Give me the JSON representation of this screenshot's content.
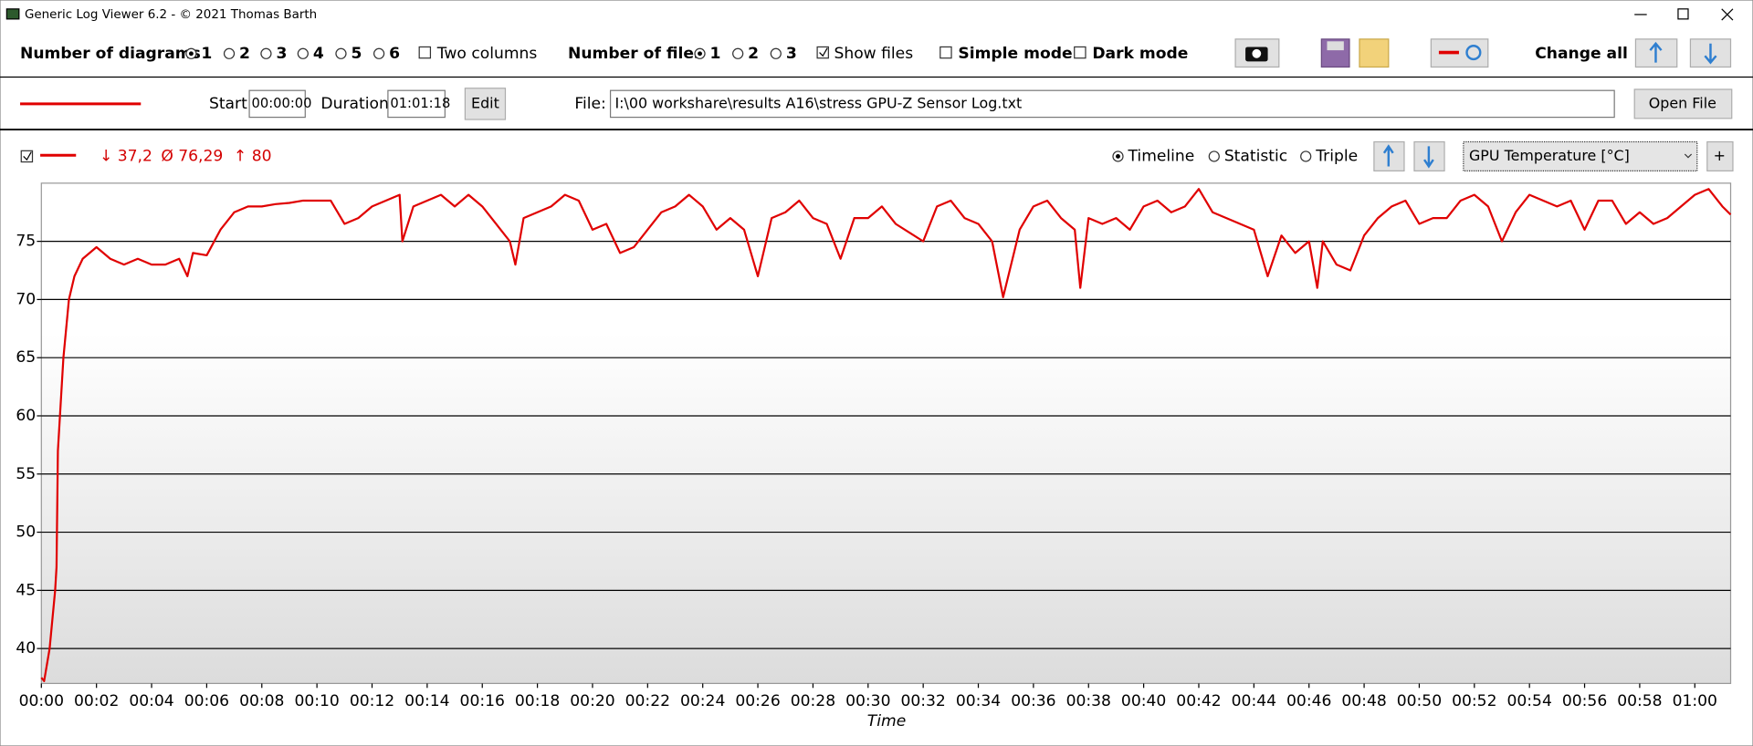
{
  "window_title": "Generic Log Viewer 6.2 - © 2021 Thomas Barth",
  "toolbar": {
    "diagrams_label": "Number of diagrams",
    "diagram_options": [
      "1",
      "2",
      "3",
      "4",
      "5",
      "6"
    ],
    "two_columns": "Two columns",
    "files_label": "Number of files",
    "file_options": [
      "1",
      "2",
      "3"
    ],
    "show_files": "Show files",
    "simple_mode": "Simple mode",
    "dark_mode": "Dark mode",
    "change_all": "Change all"
  },
  "file_bar": {
    "start_label": "Start:",
    "start": "00:00:00",
    "duration_label": "Duration:",
    "duration": "01:01:18",
    "edit": "Edit",
    "file_label": "File:",
    "file_path": "I:\\00 workshare\\results A16\\stress GPU-Z Sensor Log.txt",
    "open_file": "Open File"
  },
  "diagram_bar": {
    "min": "↓ 37,2",
    "avg": "Ø 76,29",
    "max": "↑ 80",
    "modes": [
      "Timeline",
      "Statistic",
      "Triple"
    ],
    "sensor": "GPU Temperature [°C]",
    "add": "+"
  },
  "chart_data": {
    "type": "line",
    "x_label": "Time",
    "color": "#e00000",
    "xlim": [
      0,
      61.3
    ],
    "ylim": [
      37,
      80
    ],
    "grid": true,
    "yticks": [
      40,
      45,
      50,
      55,
      60,
      65,
      70,
      75
    ],
    "xticks": [
      {
        "value": 0,
        "label": "00:00"
      },
      {
        "value": 2,
        "label": "00:02"
      },
      {
        "value": 4,
        "label": "00:04"
      },
      {
        "value": 6,
        "label": "00:06"
      },
      {
        "value": 8,
        "label": "00:08"
      },
      {
        "value": 10,
        "label": "00:10"
      },
      {
        "value": 12,
        "label": "00:12"
      },
      {
        "value": 14,
        "label": "00:14"
      },
      {
        "value": 16,
        "label": "00:16"
      },
      {
        "value": 18,
        "label": "00:18"
      },
      {
        "value": 20,
        "label": "00:20"
      },
      {
        "value": 22,
        "label": "00:22"
      },
      {
        "value": 24,
        "label": "00:24"
      },
      {
        "value": 26,
        "label": "00:26"
      },
      {
        "value": 28,
        "label": "00:28"
      },
      {
        "value": 30,
        "label": "00:30"
      },
      {
        "value": 32,
        "label": "00:32"
      },
      {
        "value": 34,
        "label": "00:34"
      },
      {
        "value": 36,
        "label": "00:36"
      },
      {
        "value": 38,
        "label": "00:38"
      },
      {
        "value": 40,
        "label": "00:40"
      },
      {
        "value": 42,
        "label": "00:42"
      },
      {
        "value": 44,
        "label": "00:44"
      },
      {
        "value": 46,
        "label": "00:46"
      },
      {
        "value": 48,
        "label": "00:48"
      },
      {
        "value": 50,
        "label": "00:50"
      },
      {
        "value": 52,
        "label": "00:52"
      },
      {
        "value": 54,
        "label": "00:54"
      },
      {
        "value": 56,
        "label": "00:56"
      },
      {
        "value": 58,
        "label": "00:58"
      },
      {
        "value": 60,
        "label": "01:00"
      }
    ],
    "x": [
      0,
      0.1,
      0.3,
      0.5,
      0.55,
      0.6,
      0.7,
      0.8,
      1,
      1.2,
      1.5,
      2,
      2.5,
      3,
      3.5,
      4,
      4.5,
      5,
      5.3,
      5.5,
      6,
      6.5,
      7,
      7.5,
      8,
      8.5,
      9,
      9.5,
      10,
      10.5,
      11,
      11.5,
      12,
      12.5,
      13,
      13.1,
      13.5,
      14,
      14.5,
      15,
      15.5,
      16,
      16.5,
      17,
      17.2,
      17.5,
      18,
      18.5,
      19,
      19.5,
      20,
      20.5,
      21,
      21.5,
      22,
      22.5,
      23,
      23.5,
      24,
      24.5,
      25,
      25.5,
      26,
      26.5,
      27,
      27.5,
      28,
      28.5,
      29,
      29.5,
      30,
      30.5,
      31,
      32,
      32.5,
      33,
      33.5,
      34,
      34.5,
      34.9,
      35.5,
      36,
      36.5,
      37,
      37.5,
      37.7,
      38,
      38.5,
      39,
      39.5,
      40,
      40.5,
      41,
      41.5,
      42,
      42.5,
      43,
      43.5,
      44,
      44.5,
      45,
      45.5,
      46,
      46.3,
      46.5,
      47,
      47.5,
      48,
      48.5,
      49,
      49.5,
      50,
      50.5,
      51,
      51.5,
      52,
      52.5,
      53,
      53.5,
      54,
      54.5,
      55,
      55.5,
      56,
      56.5,
      57,
      57.5,
      58,
      58.5,
      59,
      59.5,
      60,
      60.5,
      61,
      61.3
    ],
    "values": [
      37.5,
      37.2,
      40,
      45,
      47,
      57,
      61,
      65,
      70,
      72,
      73.5,
      74.5,
      73.5,
      73,
      73.5,
      73,
      73,
      73.5,
      72,
      74,
      73.8,
      76,
      77.5,
      78,
      78,
      78.2,
      78.3,
      78.5,
      78.5,
      78.5,
      76.5,
      77,
      78,
      78.5,
      79,
      75,
      78,
      78.5,
      79,
      78,
      79,
      78,
      76.5,
      75,
      73,
      77,
      77.5,
      78,
      79,
      78.5,
      76,
      76.5,
      74,
      74.5,
      76,
      77.5,
      78,
      79,
      78,
      76,
      77,
      76,
      72,
      77,
      77.5,
      78.5,
      77,
      76.5,
      73.5,
      77,
      77,
      78,
      76.5,
      75,
      78,
      78.5,
      77,
      76.5,
      75,
      70.2,
      76,
      78,
      78.5,
      77,
      76,
      71,
      77,
      76.5,
      77,
      76,
      78,
      78.5,
      77.5,
      78,
      79.5,
      77.5,
      77,
      76.5,
      76,
      72,
      75.5,
      74,
      75,
      71,
      75,
      73,
      72.5,
      75.5,
      77,
      78,
      78.5,
      76.5,
      77,
      77,
      78.5,
      79,
      78,
      75,
      77.5,
      79,
      78.5,
      78,
      78.5,
      76,
      78.5,
      78.5,
      76.5,
      77.5,
      76.5,
      77,
      78,
      79,
      79.5,
      78,
      77.3
    ]
  }
}
